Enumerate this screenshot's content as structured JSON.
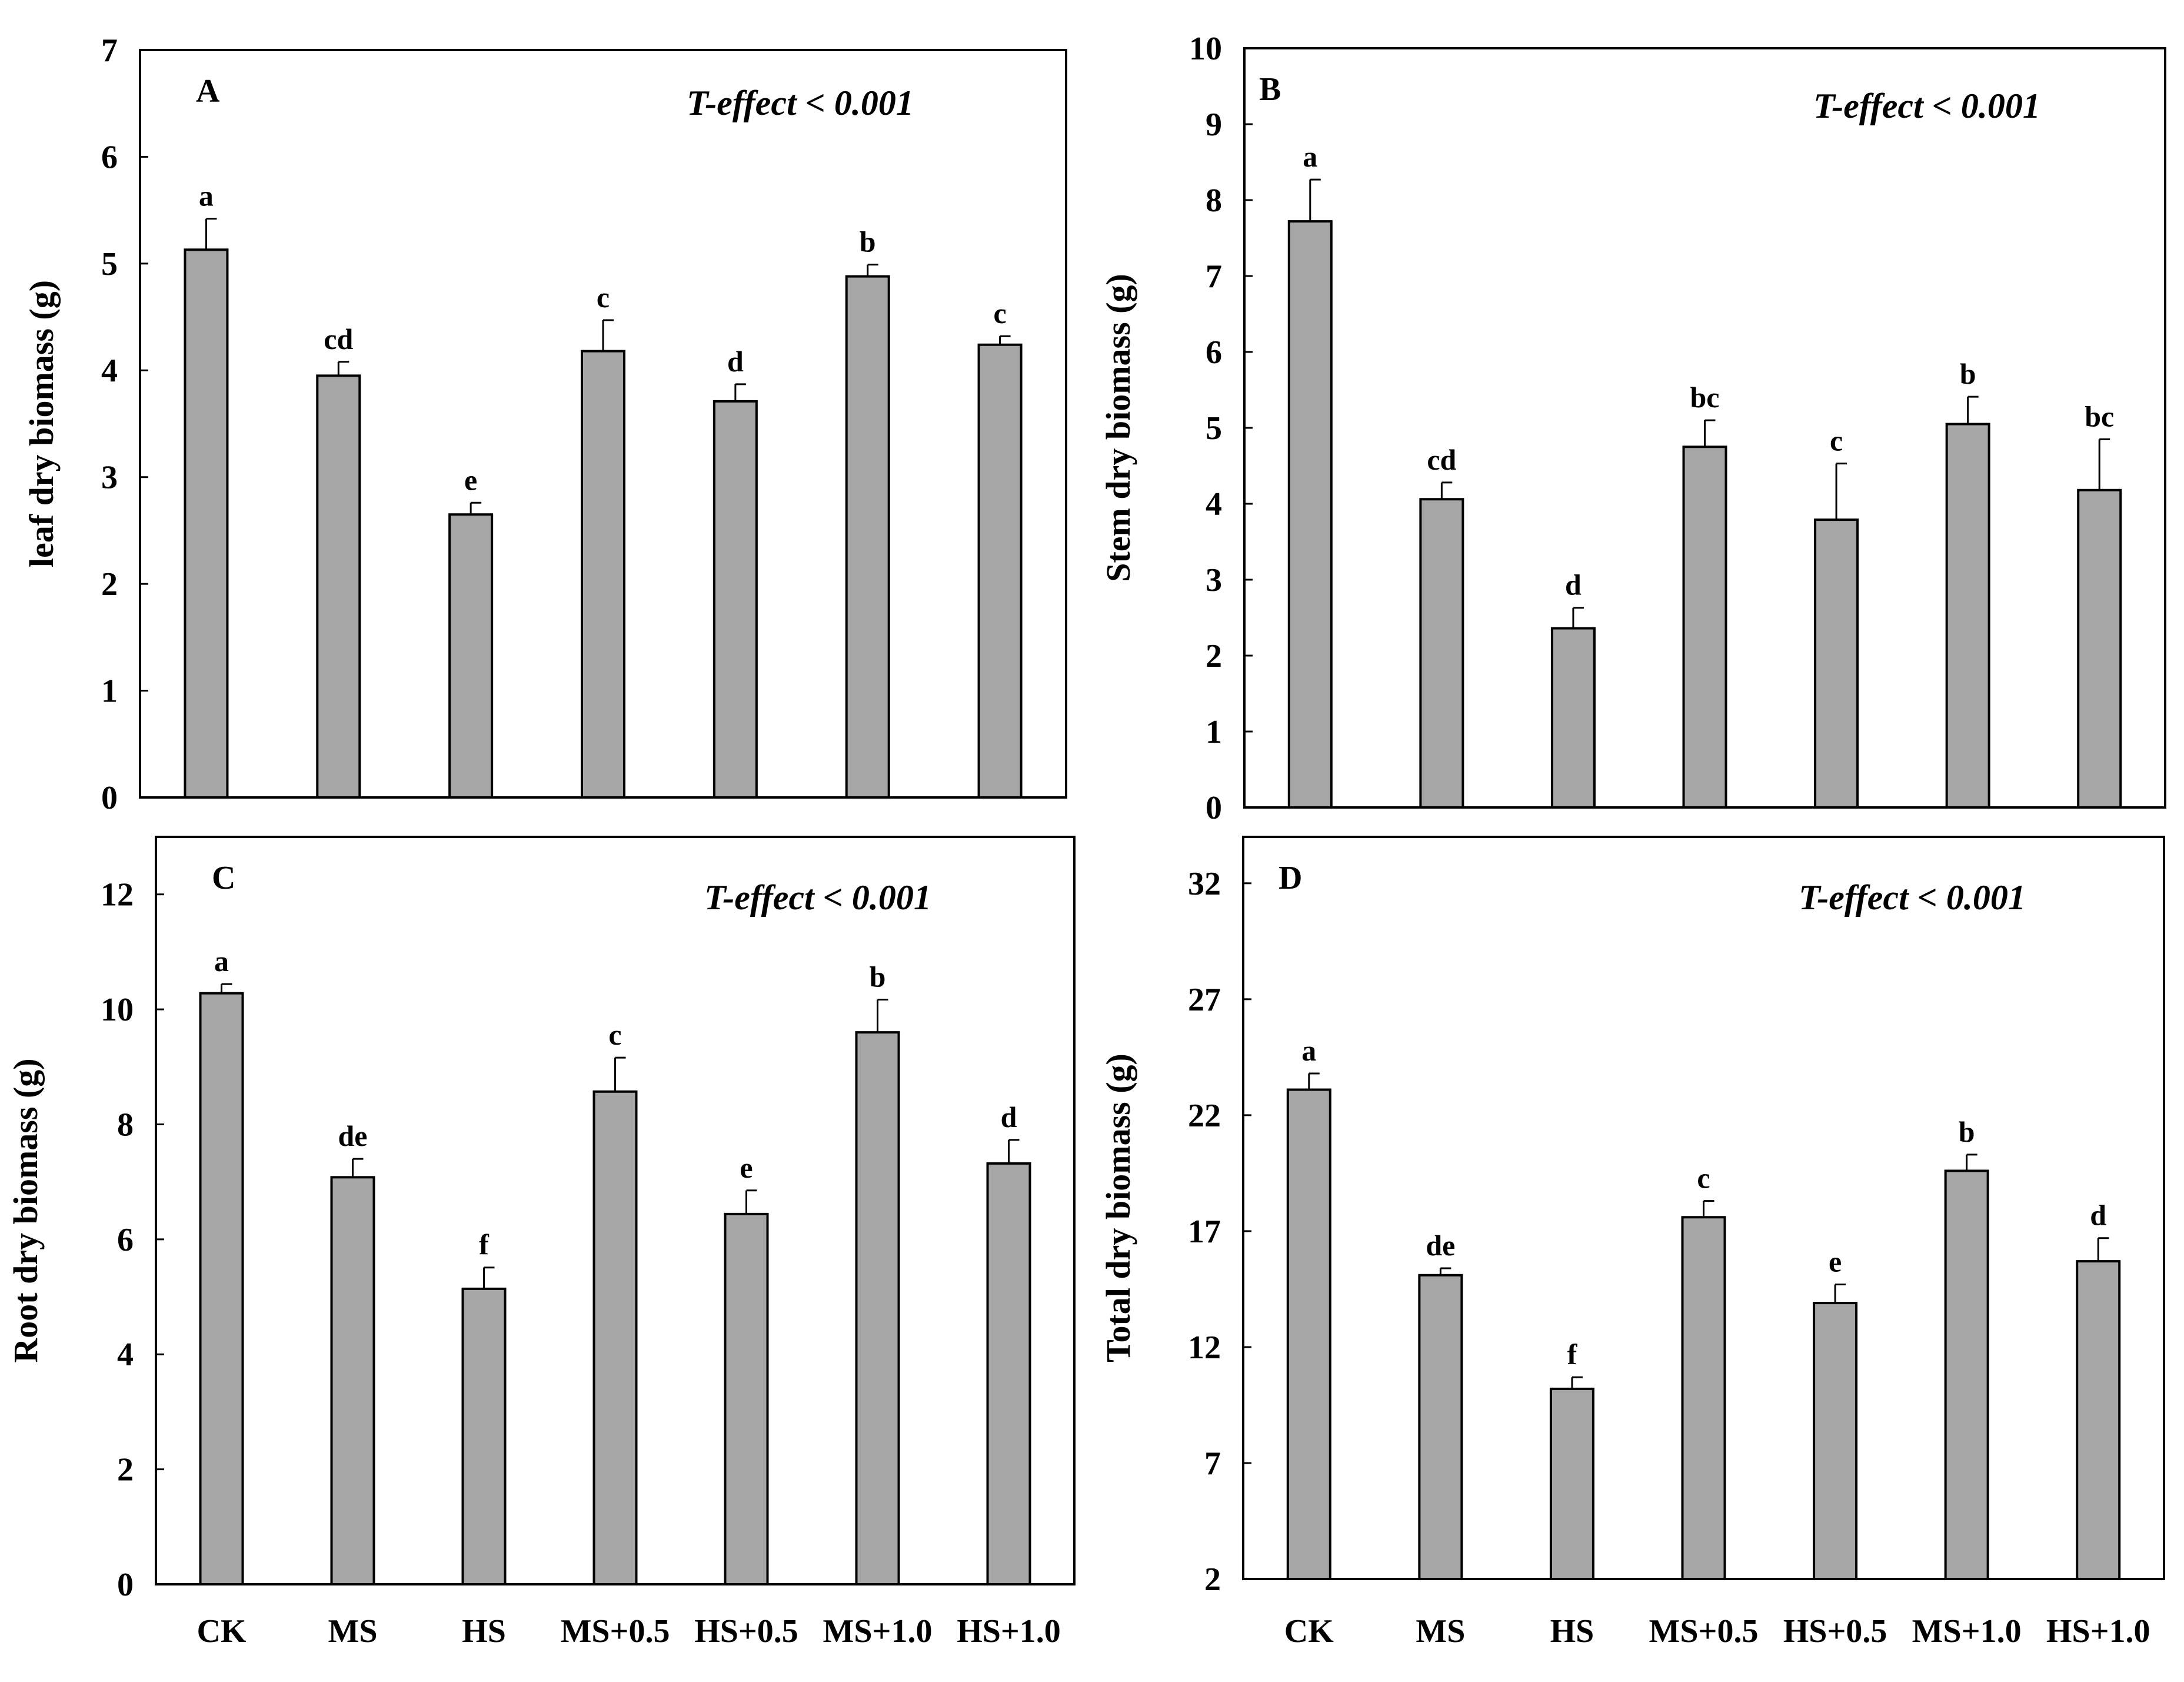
{
  "chart_data": [
    {
      "type": "bar",
      "panel": "A",
      "annotation": "T-effect < 0.001",
      "ylabel": "leaf dry biomass (g)",
      "categories": [
        "CK",
        "MS",
        "HS",
        "MS+0.5",
        "HS+0.5",
        "MS+1.0",
        "HS+1.0"
      ],
      "show_category_labels": false,
      "values": [
        5.13,
        3.95,
        2.65,
        4.18,
        3.71,
        4.88,
        4.24
      ],
      "errors": [
        0.29,
        0.13,
        0.11,
        0.29,
        0.16,
        0.11,
        0.08
      ],
      "significance": [
        "a",
        "cd",
        "e",
        "c",
        "d",
        "b",
        "c"
      ],
      "ylim": [
        0,
        7
      ],
      "yticks": [
        0,
        1,
        2,
        3,
        4,
        5,
        6,
        7
      ],
      "bar_color": "#a6a6a6"
    },
    {
      "type": "bar",
      "panel": "B",
      "annotation": "T-effect < 0.001",
      "ylabel": "Stem dry biomass (g)",
      "categories": [
        "CK",
        "MS",
        "HS",
        "MS+0.5",
        "HS+0.5",
        "MS+1.0",
        "HS+1.0"
      ],
      "show_category_labels": false,
      "values": [
        7.72,
        4.06,
        2.36,
        4.75,
        3.79,
        5.05,
        4.18
      ],
      "errors": [
        0.55,
        0.22,
        0.27,
        0.35,
        0.74,
        0.36,
        0.67
      ],
      "significance": [
        "a",
        "cd",
        "d",
        "bc",
        "c",
        "b",
        "bc"
      ],
      "ylim": [
        0,
        10
      ],
      "yticks": [
        0,
        1,
        2,
        3,
        4,
        5,
        6,
        7,
        8,
        9,
        10
      ],
      "bar_color": "#a6a6a6"
    },
    {
      "type": "bar",
      "panel": "C",
      "annotation": "T-effect < 0.001",
      "ylabel": "Root dry biomass (g)",
      "categories": [
        "CK",
        "MS",
        "HS",
        "MS+0.5",
        "HS+0.5",
        "MS+1.0",
        "HS+1.0"
      ],
      "show_category_labels": true,
      "values": [
        10.28,
        7.08,
        5.14,
        8.57,
        6.44,
        9.6,
        7.32
      ],
      "errors": [
        0.16,
        0.32,
        0.37,
        0.59,
        0.41,
        0.57,
        0.41
      ],
      "significance": [
        "a",
        "de",
        "f",
        "c",
        "e",
        "b",
        "d"
      ],
      "ylim": [
        0,
        13
      ],
      "yticks": [
        0,
        2,
        4,
        6,
        8,
        10,
        12
      ],
      "bar_color": "#a6a6a6"
    },
    {
      "type": "bar",
      "panel": "D",
      "annotation": "T-effect < 0.001",
      "ylabel": "Total dry biomass (g)",
      "categories": [
        "CK",
        "MS",
        "HS",
        "MS+0.5",
        "HS+0.5",
        "MS+1.0",
        "HS+1.0"
      ],
      "show_category_labels": true,
      "values": [
        23.1,
        15.1,
        10.2,
        17.6,
        13.9,
        19.6,
        15.7
      ],
      "errors": [
        0.7,
        0.3,
        0.5,
        0.7,
        0.8,
        0.7,
        1.0
      ],
      "significance": [
        "a",
        "de",
        "f",
        "c",
        "e",
        "b",
        "d"
      ],
      "ylim": [
        2,
        34
      ],
      "yticks": [
        2,
        7,
        12,
        17,
        22,
        27,
        32
      ],
      "bar_color": "#a6a6a6"
    }
  ]
}
